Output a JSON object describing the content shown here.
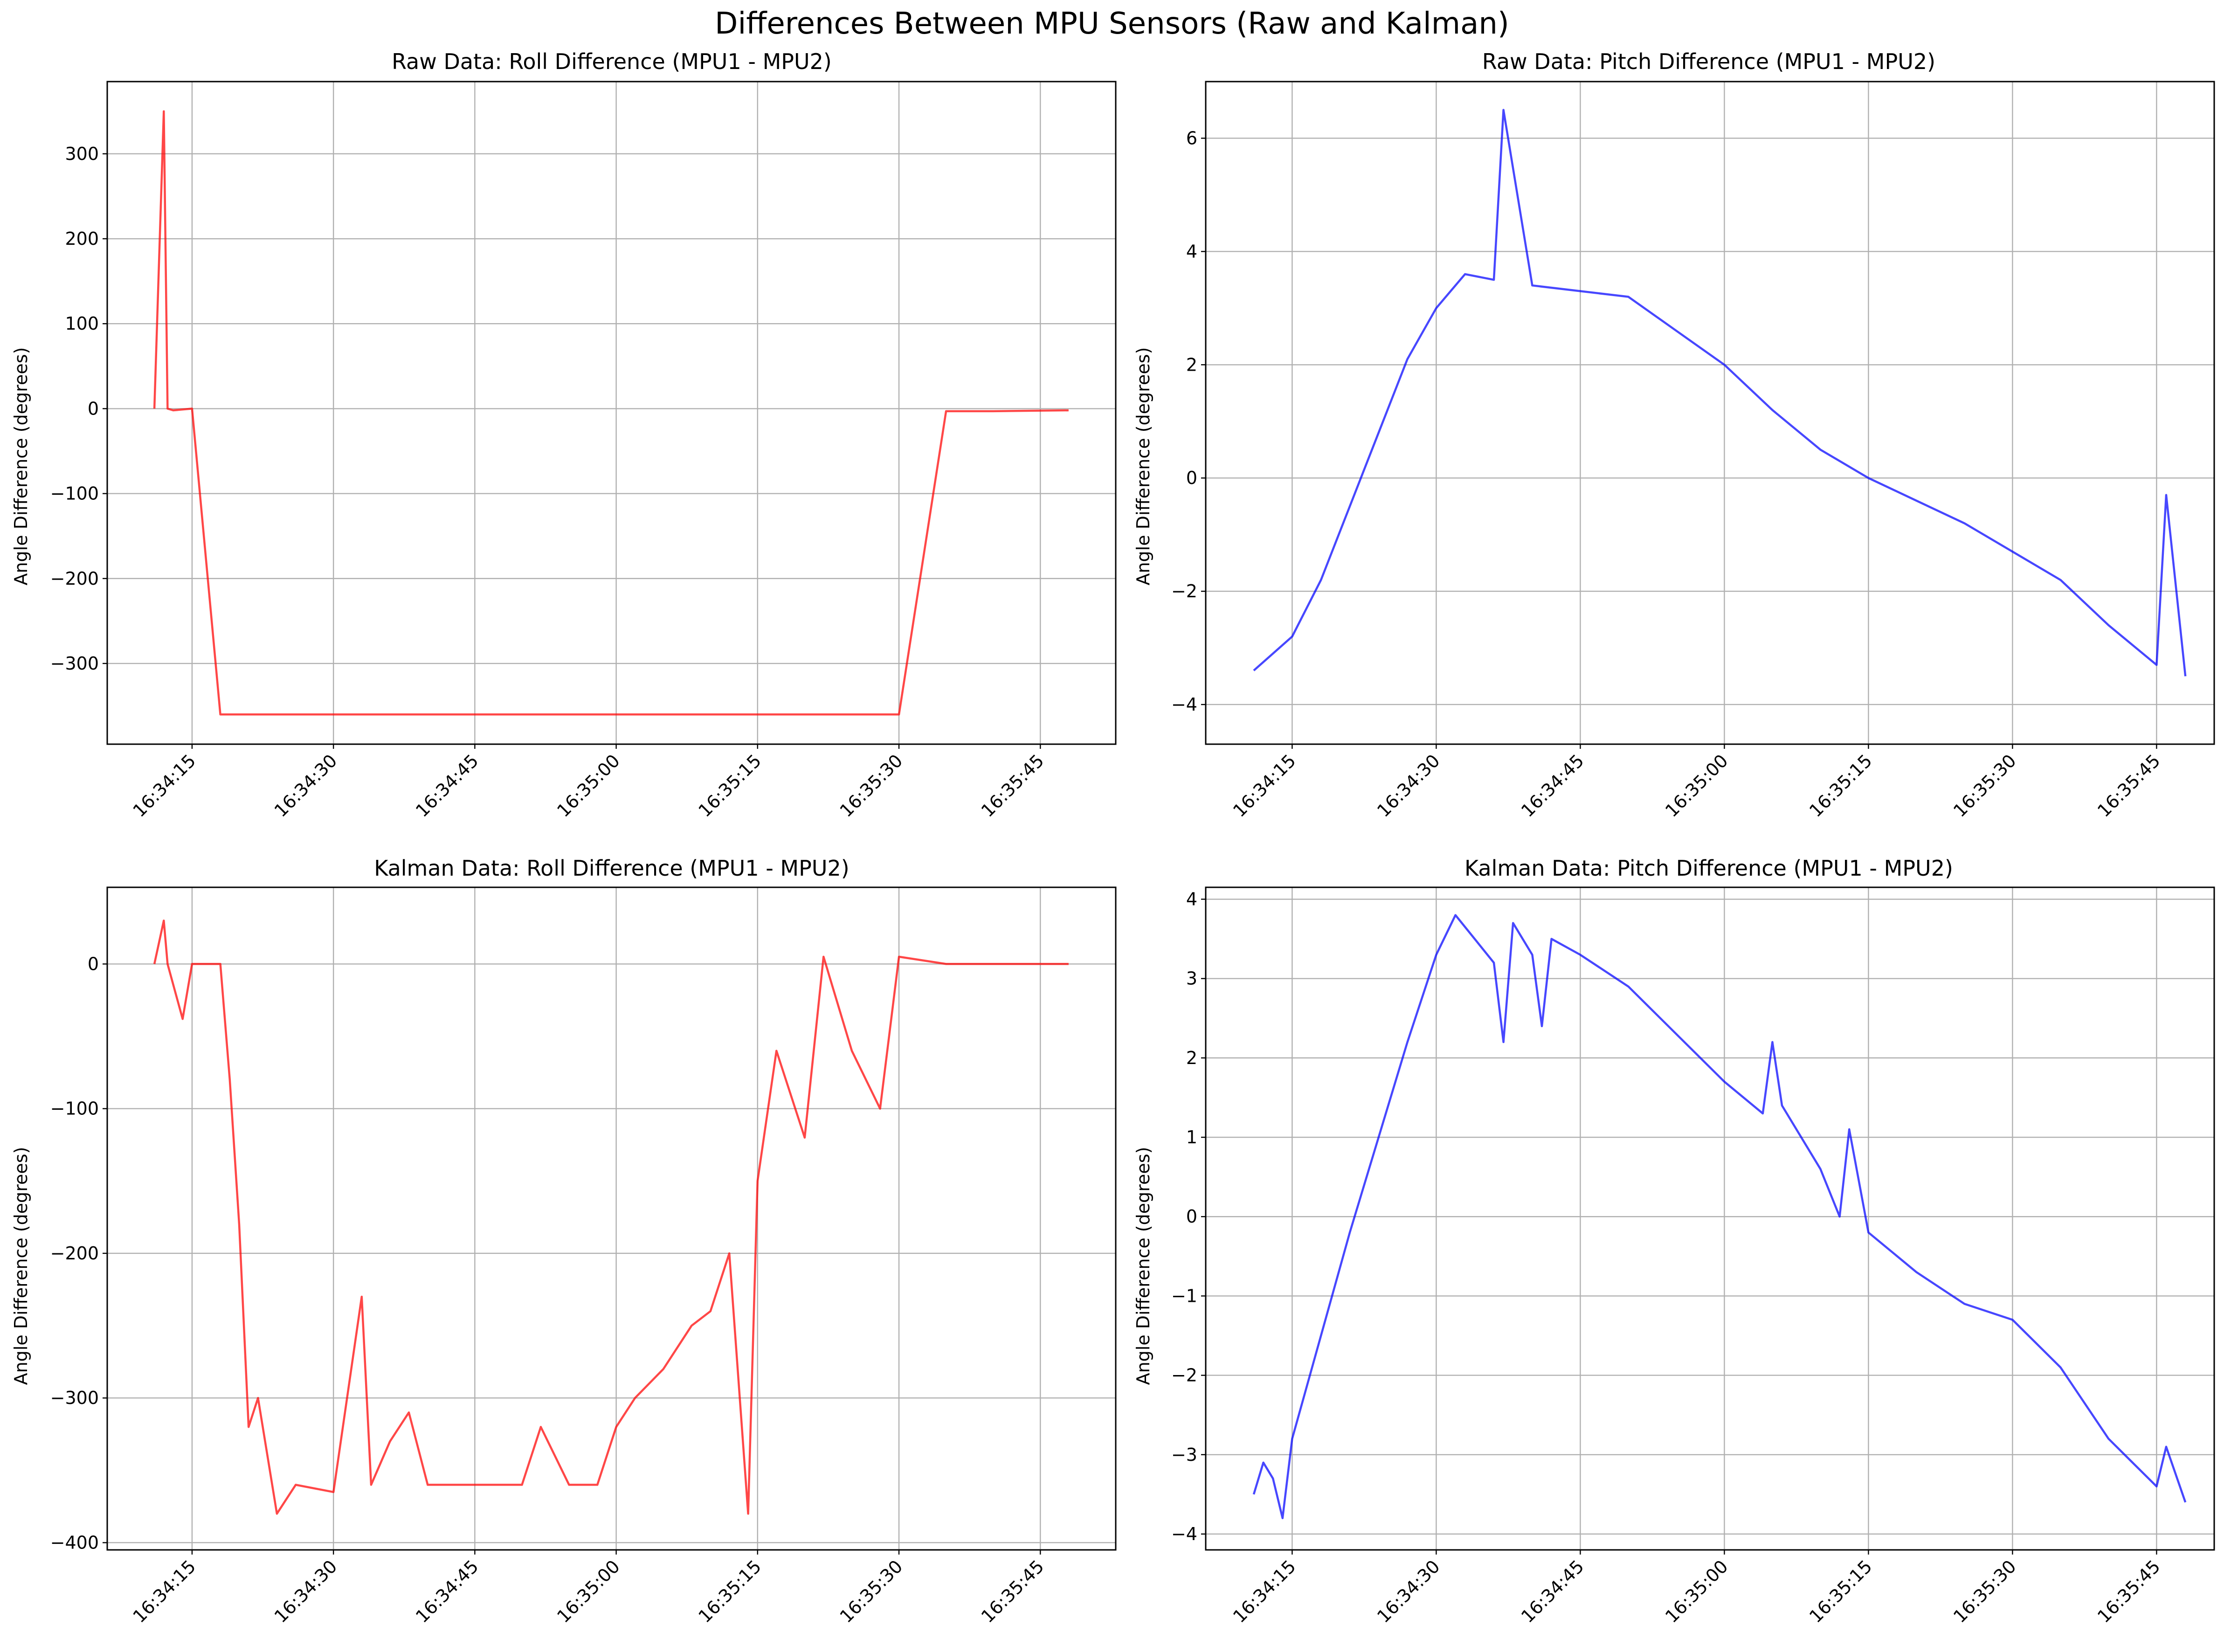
{
  "title": "Differences Between MPU Sensors (Raw and Kalman)",
  "colors": {
    "roll": "#ff0000",
    "pitch": "#0000ff"
  },
  "chart_data": [
    {
      "id": "raw_roll",
      "type": "line",
      "title": "Raw Data: Roll Difference (MPU1 - MPU2)",
      "xlabel": "",
      "ylabel": "Angle Difference (degrees)",
      "color": "#ff0000",
      "xlim": [
        "16:34:06",
        "16:35:53"
      ],
      "ylim": [
        -395,
        385
      ],
      "xticks": [
        "16:34:15",
        "16:34:30",
        "16:34:45",
        "16:35:00",
        "16:35:15",
        "16:35:30",
        "16:35:45"
      ],
      "yticks": [
        300,
        200,
        100,
        0,
        -100,
        -200,
        -300
      ],
      "ytick_labels": [
        "300",
        "200",
        "100",
        "0",
        "−100",
        "−200",
        "−300"
      ],
      "grid": true,
      "series": [
        {
          "x": [
            "16:34:11",
            "16:34:12",
            "16:34:12.4",
            "16:34:13",
            "16:34:15",
            "16:34:18",
            "16:34:21",
            "16:34:27",
            "16:34:33",
            "16:34:37",
            "16:34:40",
            "16:34:50",
            "16:34:59",
            "16:35:05",
            "16:35:10",
            "16:35:15",
            "16:35:20",
            "16:35:25",
            "16:35:30",
            "16:35:35",
            "16:35:40",
            "16:35:48"
          ],
          "y": [
            0,
            350,
            0,
            -2,
            0,
            -360,
            -360,
            -360,
            -360,
            -360,
            -360,
            -360,
            -360,
            -360,
            -360,
            -360,
            -360,
            -360,
            -360,
            -3,
            -3,
            -2
          ]
        }
      ]
    },
    {
      "id": "raw_pitch",
      "type": "line",
      "title": "Raw Data: Pitch Difference (MPU1 - MPU2)",
      "xlabel": "",
      "ylabel": "Angle Difference (degrees)",
      "color": "#0000ff",
      "xlim": [
        "16:34:06",
        "16:35:51"
      ],
      "ylim": [
        -4.7,
        7.0
      ],
      "xticks": [
        "16:34:15",
        "16:34:30",
        "16:34:45",
        "16:35:00",
        "16:35:15",
        "16:35:30",
        "16:35:45"
      ],
      "yticks": [
        6,
        4,
        2,
        0,
        -2,
        -4
      ],
      "ytick_labels": [
        "6",
        "4",
        "2",
        "0",
        "−2",
        "−4"
      ],
      "grid": true,
      "series": [
        {
          "x": [
            "16:34:11",
            "16:34:15",
            "16:34:18",
            "16:34:21",
            "16:34:24",
            "16:34:27",
            "16:34:30",
            "16:34:33",
            "16:34:36",
            "16:34:37",
            "16:34:40",
            "16:34:45",
            "16:34:50",
            "16:34:55",
            "16:35:00",
            "16:35:05",
            "16:35:10",
            "16:35:15",
            "16:35:20",
            "16:35:25",
            "16:35:30",
            "16:35:35",
            "16:35:40",
            "16:35:45",
            "16:35:46",
            "16:35:48"
          ],
          "y": [
            -3.4,
            -2.8,
            -1.8,
            -0.5,
            0.8,
            2.1,
            3.0,
            3.6,
            3.5,
            6.5,
            3.4,
            3.3,
            3.2,
            2.6,
            2.0,
            1.2,
            0.5,
            0.0,
            -0.4,
            -0.8,
            -1.3,
            -1.8,
            -2.6,
            -3.3,
            -0.3,
            -3.5
          ]
        }
      ]
    },
    {
      "id": "kalman_roll",
      "type": "line",
      "title": "Kalman Data: Roll Difference (MPU1 - MPU2)",
      "xlabel": "",
      "ylabel": "Angle Difference (degrees)",
      "color": "#ff0000",
      "xlim": [
        "16:34:06",
        "16:35:53"
      ],
      "ylim": [
        -405,
        53
      ],
      "xticks": [
        "16:34:15",
        "16:34:30",
        "16:34:45",
        "16:35:00",
        "16:35:15",
        "16:35:30",
        "16:35:45"
      ],
      "yticks": [
        0,
        -100,
        -200,
        -300,
        -400
      ],
      "ytick_labels": [
        "0",
        "−100",
        "−200",
        "−300",
        "−400"
      ],
      "grid": true,
      "series": [
        {
          "x": [
            "16:34:11",
            "16:34:12",
            "16:34:12.4",
            "16:34:14",
            "16:34:15",
            "16:34:18",
            "16:34:19",
            "16:34:20",
            "16:34:21",
            "16:34:22",
            "16:34:24",
            "16:34:26",
            "16:34:30",
            "16:34:33",
            "16:34:34",
            "16:34:36",
            "16:34:38",
            "16:34:40",
            "16:34:45",
            "16:34:50",
            "16:34:52",
            "16:34:55",
            "16:34:58",
            "16:35:00",
            "16:35:02",
            "16:35:05",
            "16:35:08",
            "16:35:10",
            "16:35:12",
            "16:35:14",
            "16:35:15",
            "16:35:17",
            "16:35:20",
            "16:35:22",
            "16:35:25",
            "16:35:28",
            "16:35:30",
            "16:35:35",
            "16:35:40",
            "16:35:48"
          ],
          "y": [
            0,
            30,
            0,
            -38,
            0,
            0,
            -80,
            -180,
            -320,
            -300,
            -380,
            -360,
            -365,
            -230,
            -360,
            -330,
            -310,
            -360,
            -360,
            -360,
            -320,
            -360,
            -360,
            -320,
            -300,
            -280,
            -250,
            -240,
            -200,
            -380,
            -150,
            -60,
            -120,
            5,
            -60,
            -100,
            5,
            0,
            0,
            0
          ]
        }
      ]
    },
    {
      "id": "kalman_pitch",
      "type": "line",
      "title": "Kalman Data: Pitch Difference (MPU1 - MPU2)",
      "xlabel": "",
      "ylabel": "Angle Difference (degrees)",
      "color": "#0000ff",
      "xlim": [
        "16:34:06",
        "16:35:51"
      ],
      "ylim": [
        -4.2,
        4.15
      ],
      "xticks": [
        "16:34:15",
        "16:34:30",
        "16:34:45",
        "16:35:00",
        "16:35:15",
        "16:35:30",
        "16:35:45"
      ],
      "yticks": [
        4,
        3,
        2,
        1,
        0,
        -1,
        -2,
        -3,
        -4
      ],
      "ytick_labels": [
        "4",
        "3",
        "2",
        "1",
        "0",
        "−1",
        "−2",
        "−3",
        "−4"
      ],
      "grid": true,
      "series": [
        {
          "x": [
            "16:34:11",
            "16:34:12",
            "16:34:13",
            "16:34:14",
            "16:34:15",
            "16:34:18",
            "16:34:21",
            "16:34:24",
            "16:34:27",
            "16:34:30",
            "16:34:32",
            "16:34:34",
            "16:34:36",
            "16:34:37",
            "16:34:38",
            "16:34:40",
            "16:34:41",
            "16:34:42",
            "16:34:45",
            "16:34:50",
            "16:34:55",
            "16:35:00",
            "16:35:04",
            "16:35:05",
            "16:35:06",
            "16:35:10",
            "16:35:12",
            "16:35:13",
            "16:35:15",
            "16:35:20",
            "16:35:25",
            "16:35:30",
            "16:35:35",
            "16:35:40",
            "16:35:45",
            "16:35:46",
            "16:35:48"
          ],
          "y": [
            -3.5,
            -3.1,
            -3.3,
            -3.8,
            -2.8,
            -1.5,
            -0.2,
            1.0,
            2.2,
            3.3,
            3.8,
            3.5,
            3.2,
            2.2,
            3.7,
            3.3,
            2.4,
            3.5,
            3.3,
            2.9,
            2.3,
            1.7,
            1.3,
            2.2,
            1.4,
            0.6,
            0.0,
            1.1,
            -0.2,
            -0.7,
            -1.1,
            -1.3,
            -1.9,
            -2.8,
            -3.4,
            -2.9,
            -3.6
          ]
        }
      ]
    }
  ]
}
